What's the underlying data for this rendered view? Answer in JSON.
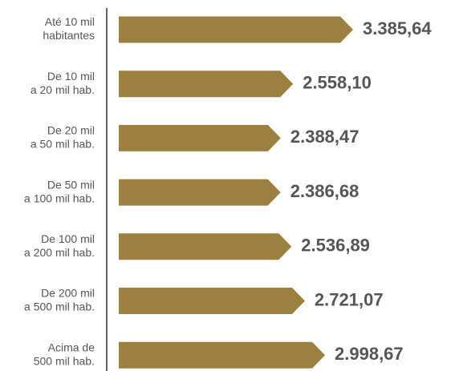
{
  "chart_data": {
    "type": "bar",
    "orientation": "horizontal",
    "categories": [
      [
        "Até 10 mil",
        "habitantes"
      ],
      [
        "De 10 mil",
        "a 20 mil hab."
      ],
      [
        "De 20 mil",
        "a 50 mil hab."
      ],
      [
        "De 50 mil",
        "a 100 mil hab."
      ],
      [
        "De 100 mil",
        "a 200 mil hab."
      ],
      [
        "De 200 mil",
        "a 500 mil hab."
      ],
      [
        "Acima de",
        "500 mil hab."
      ]
    ],
    "values": [
      3385.64,
      2558.1,
      2388.47,
      2386.68,
      2536.89,
      2721.07,
      2998.67
    ],
    "value_labels": [
      "3.385,64",
      "2.558,10",
      "2.388,47",
      "2.386,68",
      "2.536,89",
      "2.721,07",
      "2.998,67"
    ],
    "color": "#9b8040"
  }
}
